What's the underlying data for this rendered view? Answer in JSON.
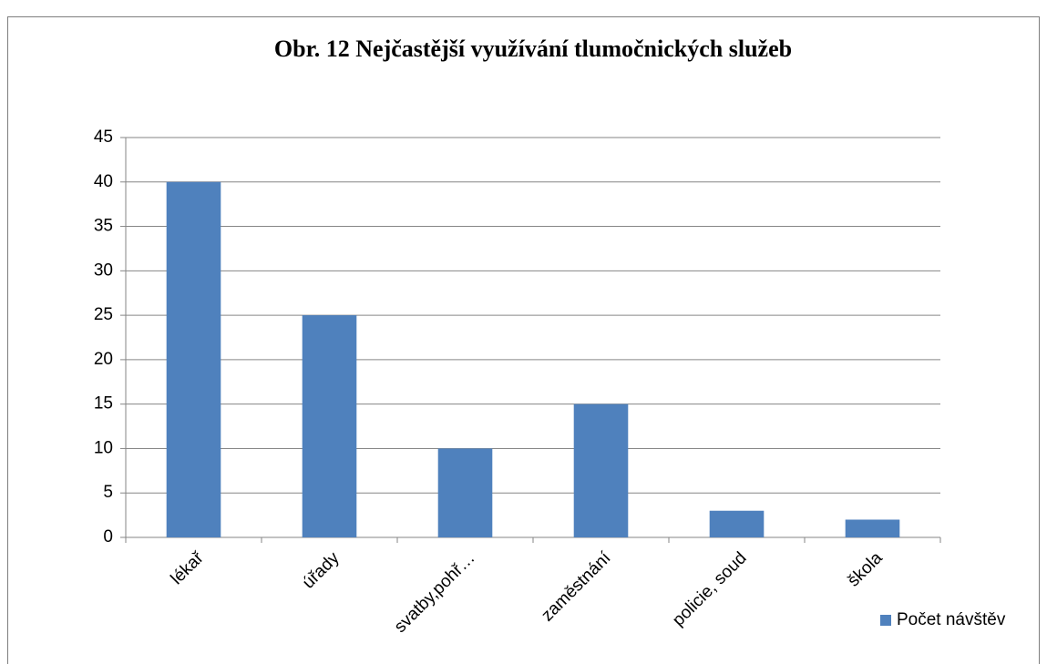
{
  "chart_data": {
    "type": "bar",
    "title": "Obr. 12 Nejčastější využívání tlumočnických služeb",
    "categories": [
      "lékař",
      "úřady",
      "svatby,pohř…",
      "zaměstnání",
      "policie, soud",
      "škola"
    ],
    "series": [
      {
        "name": "Počet návštěv",
        "color": "#4f81bd",
        "values": [
          40,
          25,
          10,
          15,
          3,
          2
        ]
      }
    ],
    "ylim": [
      0,
      45
    ],
    "yticks": [
      0,
      5,
      10,
      15,
      20,
      25,
      30,
      35,
      40,
      45
    ],
    "grid": true,
    "legend": "right"
  }
}
